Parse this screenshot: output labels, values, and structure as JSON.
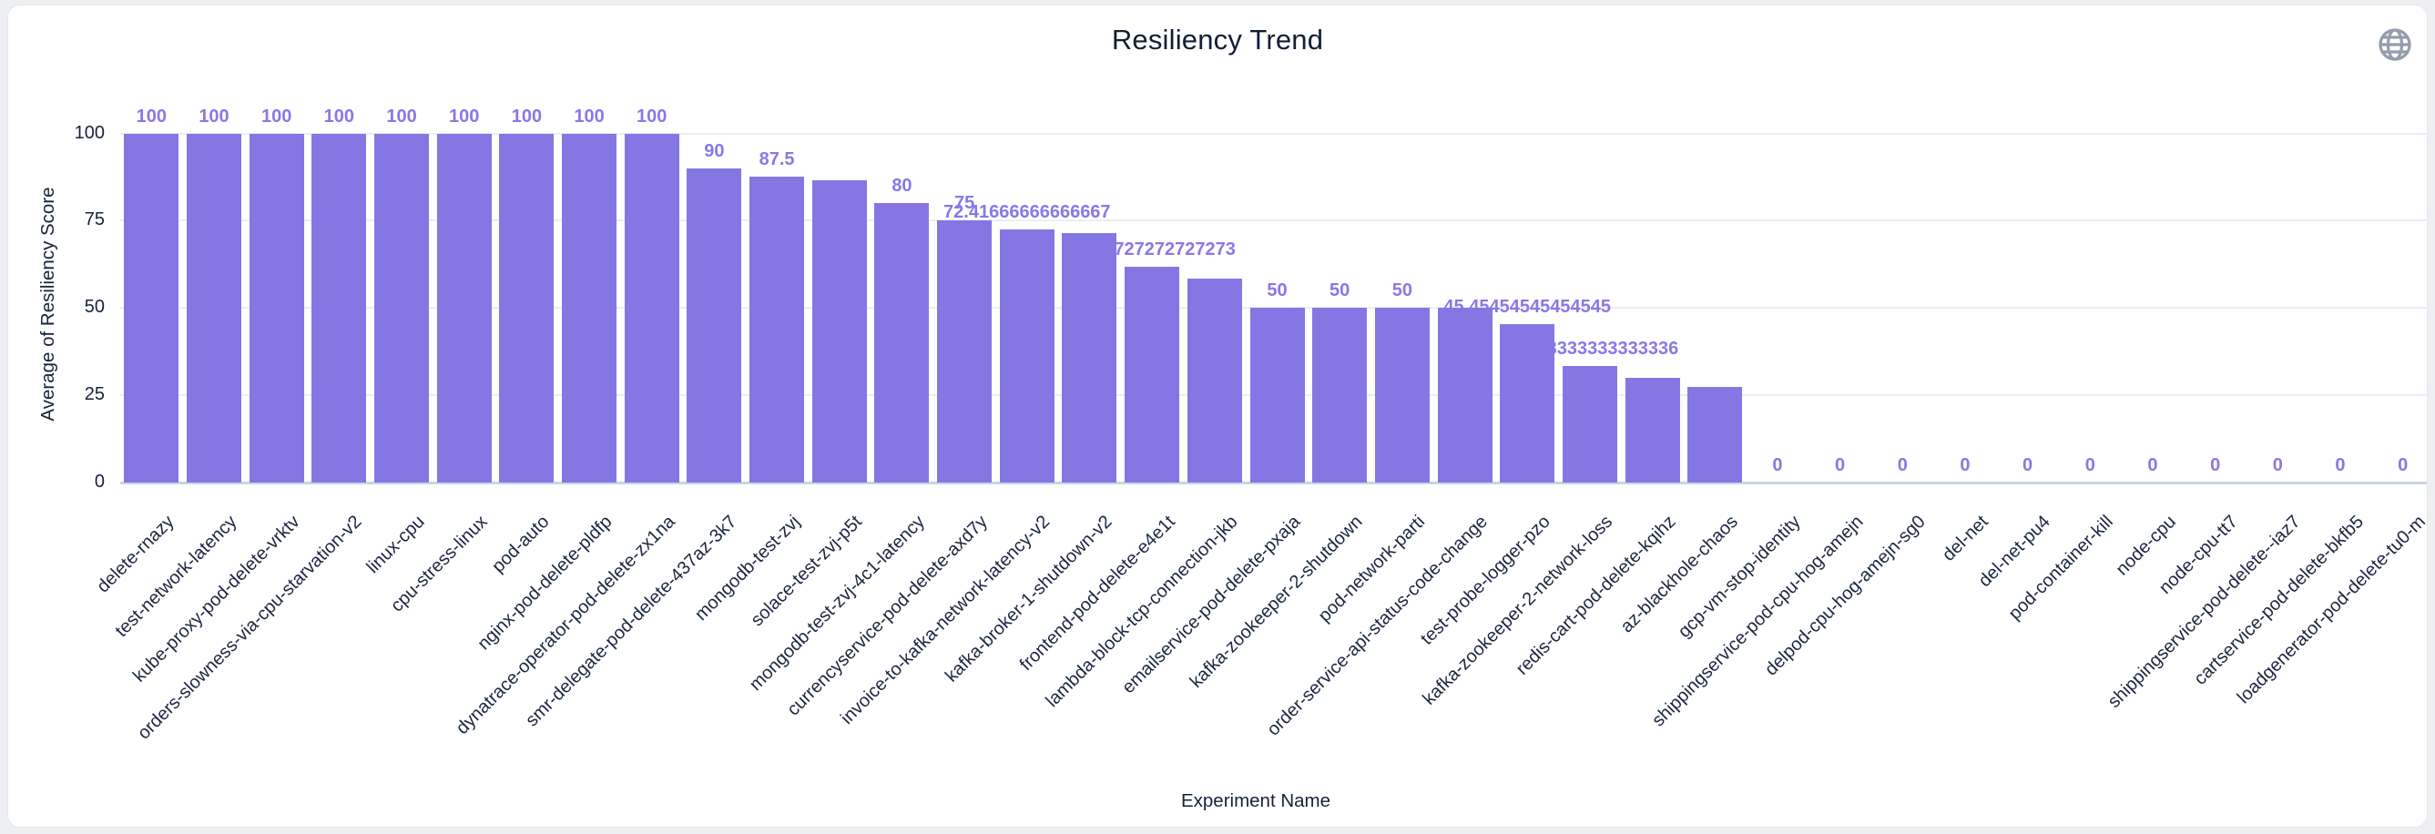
{
  "header": {
    "title": "Resiliency Trend"
  },
  "icons": {
    "top_right": "globe-icon"
  },
  "colors": {
    "bar": "#8577E3",
    "value_label": "#8679E8",
    "axis_text": "#16223A",
    "tick_text": "#1B2740",
    "grid_line": "#ECEEF3",
    "axis_line": "#CDD3E5",
    "page_bg": "#EDEFF2",
    "card_bg": "#FFFFFF",
    "card_border": "#E3E6EB",
    "globe_icon": "#959DAC"
  },
  "chart_data": {
    "type": "bar",
    "title": "Resiliency Trend",
    "xlabel": "Experiment Name",
    "ylabel": "Average of Resiliency Score",
    "ylim": [
      0,
      100
    ],
    "yticks": [
      0,
      25,
      50,
      75,
      100
    ],
    "grid": true,
    "legend": false,
    "value_labels_position": "above bars; long overlapping labels hidden or partially covered by neighboring taller bars",
    "points": [
      {
        "name": "delete-rnazy",
        "value": 100,
        "label": "100",
        "label_visible": true
      },
      {
        "name": "test-network-latency",
        "value": 100,
        "label": "100",
        "label_visible": true
      },
      {
        "name": "kube-proxy-pod-delete-vrktv",
        "value": 100,
        "label": "100",
        "label_visible": true
      },
      {
        "name": "orders-slowness-via-cpu-starvation-v2",
        "value": 100,
        "label": "100",
        "label_visible": true
      },
      {
        "name": "linux-cpu",
        "value": 100,
        "label": "100",
        "label_visible": true
      },
      {
        "name": "cpu-stress-linux",
        "value": 100,
        "label": "100",
        "label_visible": true
      },
      {
        "name": "pod-auto",
        "value": 100,
        "label": "100",
        "label_visible": true
      },
      {
        "name": "nginx-pod-delete-pldfp",
        "value": 100,
        "label": "100",
        "label_visible": true
      },
      {
        "name": "dynatrace-operator-pod-delete-zx1na",
        "value": 100,
        "label": "100",
        "label_visible": true
      },
      {
        "name": "smr-delegate-pod-delete-437az-3k7",
        "value": 90,
        "label": "90",
        "label_visible": true
      },
      {
        "name": "mongodb-test-zvj",
        "value": 87.5,
        "label": "87.5",
        "label_visible": true
      },
      {
        "name": "solace-test-zvj-p5t",
        "value": 86.5,
        "label": "",
        "label_visible": false
      },
      {
        "name": "mongodb-test-zvj-4c1-latency",
        "value": 80,
        "label": "80",
        "label_visible": true
      },
      {
        "name": "currencyservice-pod-delete-axd7y",
        "value": 75,
        "label": "75",
        "label_visible": true
      },
      {
        "name": "invoice-to-kafka-network-latency-v2",
        "value": 72.41666666666667,
        "label": "72.41666666666667",
        "label_visible": true
      },
      {
        "name": "kafka-broker-1-shutdown-v2",
        "value": 71.5,
        "label": "",
        "label_visible": false
      },
      {
        "name": "frontend-pod-delete-e4e1t",
        "value": 61.72727272727273,
        "label": "61.72727272727273",
        "label_visible": true
      },
      {
        "name": "lambda-block-tcp-connection-jkb",
        "value": 58.3,
        "label": "",
        "label_visible": false
      },
      {
        "name": "emailservice-pod-delete-pxaja",
        "value": 50,
        "label": "50",
        "label_visible": true
      },
      {
        "name": "kafka-zookeeper-2-shutdown",
        "value": 50,
        "label": "50",
        "label_visible": true
      },
      {
        "name": "pod-network-parti",
        "value": 50,
        "label": "50",
        "label_visible": true
      },
      {
        "name": "order-service-api-status-code-change",
        "value": 50,
        "label": "",
        "label_visible": false
      },
      {
        "name": "test-probe-logger-pzo",
        "value": 45.45454545454545,
        "label": "45.45454545454545",
        "label_visible": true
      },
      {
        "name": "kafka-zookeeper-2-network-loss",
        "value": 33.333333333333336,
        "label": "33.333333333333336",
        "label_visible": true
      },
      {
        "name": "redis-cart-pod-delete-kqihz",
        "value": 30,
        "label": "",
        "label_visible": false
      },
      {
        "name": "az-blackhole-chaos",
        "value": 27.3,
        "label": "",
        "label_visible": false
      },
      {
        "name": "gcp-vm-stop-identity",
        "value": 0,
        "label": "0",
        "label_visible": true
      },
      {
        "name": "shippingservice-pod-cpu-hog-amejn",
        "value": 0,
        "label": "0",
        "label_visible": true
      },
      {
        "name": "delpod-cpu-hog-amejn-sg0",
        "value": 0,
        "label": "0",
        "label_visible": true
      },
      {
        "name": "del-net",
        "value": 0,
        "label": "0",
        "label_visible": true
      },
      {
        "name": "del-net-pu4",
        "value": 0,
        "label": "0",
        "label_visible": true
      },
      {
        "name": "pod-container-kill",
        "value": 0,
        "label": "0",
        "label_visible": true
      },
      {
        "name": "node-cpu",
        "value": 0,
        "label": "0",
        "label_visible": true
      },
      {
        "name": "node-cpu-tt7",
        "value": 0,
        "label": "0",
        "label_visible": true
      },
      {
        "name": "shippingservice-pod-delete--iaz7",
        "value": 0,
        "label": "0",
        "label_visible": true
      },
      {
        "name": "cartservice-pod-delete-bkfb5",
        "value": 0,
        "label": "0",
        "label_visible": true
      },
      {
        "name": "loadgenerator-pod-delete-tu0-m",
        "value": 0,
        "label": "0",
        "label_visible": true
      }
    ]
  }
}
